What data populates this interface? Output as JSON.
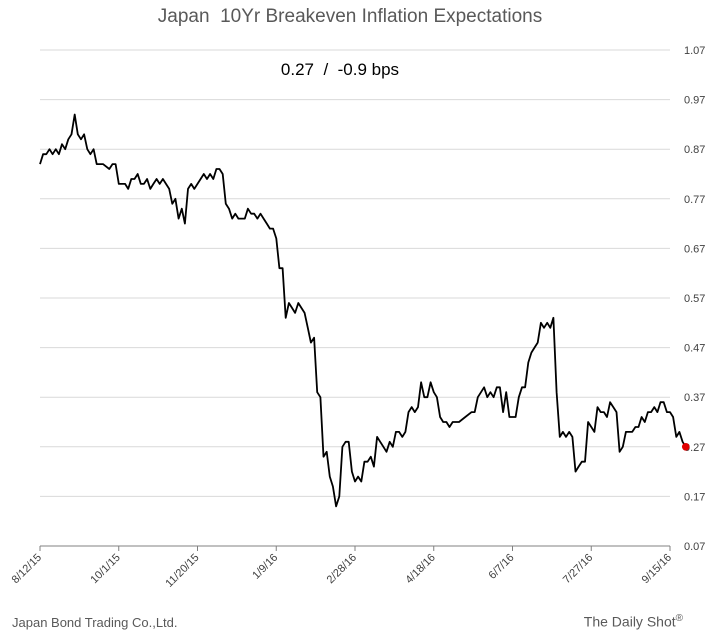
{
  "chart_data": {
    "type": "line",
    "title": "Japan  10Yr Breakeven Inflation Expectations",
    "annotation": "0.27  /  -0.9 bps",
    "xlabel": "",
    "ylabel": "",
    "ylim": [
      0.07,
      1.07
    ],
    "y_ticks": [
      "0.07",
      "0.17",
      "0.27",
      "0.37",
      "0.47",
      "0.57",
      "0.67",
      "0.77",
      "0.87",
      "0.97",
      "1.07"
    ],
    "x_tick_labels": [
      "8/12/15",
      "10/1/15",
      "11/20/15",
      "1/9/16",
      "2/28/16",
      "4/18/16",
      "6/7/16",
      "7/27/16",
      "9/15/16"
    ],
    "xlim_days": [
      0,
      400
    ],
    "x_tick_days": [
      0,
      50,
      100,
      150,
      200,
      250,
      300,
      350,
      400
    ],
    "grid": true,
    "line_color": "#000000",
    "last_point_color": "#e00000",
    "series": [
      {
        "name": "",
        "points": [
          [
            0,
            0.84
          ],
          [
            2,
            0.86
          ],
          [
            4,
            0.86
          ],
          [
            6,
            0.87
          ],
          [
            8,
            0.86
          ],
          [
            10,
            0.87
          ],
          [
            12,
            0.86
          ],
          [
            14,
            0.88
          ],
          [
            16,
            0.87
          ],
          [
            18,
            0.89
          ],
          [
            20,
            0.9
          ],
          [
            22,
            0.94
          ],
          [
            24,
            0.9
          ],
          [
            26,
            0.89
          ],
          [
            28,
            0.9
          ],
          [
            30,
            0.87
          ],
          [
            32,
            0.86
          ],
          [
            34,
            0.87
          ],
          [
            36,
            0.84
          ],
          [
            40,
            0.84
          ],
          [
            44,
            0.83
          ],
          [
            46,
            0.84
          ],
          [
            48,
            0.84
          ],
          [
            50,
            0.8
          ],
          [
            54,
            0.8
          ],
          [
            56,
            0.79
          ],
          [
            58,
            0.81
          ],
          [
            60,
            0.81
          ],
          [
            62,
            0.82
          ],
          [
            64,
            0.8
          ],
          [
            66,
            0.8
          ],
          [
            68,
            0.81
          ],
          [
            70,
            0.79
          ],
          [
            72,
            0.8
          ],
          [
            74,
            0.81
          ],
          [
            76,
            0.8
          ],
          [
            78,
            0.81
          ],
          [
            80,
            0.8
          ],
          [
            82,
            0.79
          ],
          [
            84,
            0.76
          ],
          [
            86,
            0.77
          ],
          [
            88,
            0.73
          ],
          [
            90,
            0.75
          ],
          [
            92,
            0.72
          ],
          [
            94,
            0.79
          ],
          [
            96,
            0.8
          ],
          [
            98,
            0.79
          ],
          [
            100,
            0.8
          ],
          [
            104,
            0.82
          ],
          [
            106,
            0.81
          ],
          [
            108,
            0.82
          ],
          [
            110,
            0.81
          ],
          [
            112,
            0.83
          ],
          [
            114,
            0.83
          ],
          [
            116,
            0.82
          ],
          [
            118,
            0.76
          ],
          [
            120,
            0.75
          ],
          [
            122,
            0.73
          ],
          [
            124,
            0.74
          ],
          [
            126,
            0.73
          ],
          [
            128,
            0.73
          ],
          [
            130,
            0.73
          ],
          [
            132,
            0.75
          ],
          [
            134,
            0.74
          ],
          [
            136,
            0.74
          ],
          [
            138,
            0.73
          ],
          [
            140,
            0.74
          ],
          [
            142,
            0.73
          ],
          [
            144,
            0.72
          ],
          [
            146,
            0.71
          ],
          [
            148,
            0.71
          ],
          [
            150,
            0.69
          ],
          [
            152,
            0.63
          ],
          [
            154,
            0.63
          ],
          [
            156,
            0.53
          ],
          [
            158,
            0.56
          ],
          [
            160,
            0.55
          ],
          [
            162,
            0.54
          ],
          [
            164,
            0.56
          ],
          [
            166,
            0.55
          ],
          [
            168,
            0.54
          ],
          [
            170,
            0.51
          ],
          [
            172,
            0.48
          ],
          [
            174,
            0.49
          ],
          [
            176,
            0.38
          ],
          [
            178,
            0.37
          ],
          [
            180,
            0.25
          ],
          [
            182,
            0.26
          ],
          [
            184,
            0.21
          ],
          [
            186,
            0.19
          ],
          [
            188,
            0.15
          ],
          [
            190,
            0.17
          ],
          [
            192,
            0.27
          ],
          [
            194,
            0.28
          ],
          [
            196,
            0.28
          ],
          [
            198,
            0.22
          ],
          [
            200,
            0.2
          ],
          [
            202,
            0.21
          ],
          [
            204,
            0.2
          ],
          [
            206,
            0.24
          ],
          [
            208,
            0.24
          ],
          [
            210,
            0.25
          ],
          [
            212,
            0.23
          ],
          [
            214,
            0.29
          ],
          [
            216,
            0.28
          ],
          [
            218,
            0.27
          ],
          [
            220,
            0.26
          ],
          [
            222,
            0.28
          ],
          [
            224,
            0.27
          ],
          [
            226,
            0.3
          ],
          [
            228,
            0.3
          ],
          [
            230,
            0.29
          ],
          [
            232,
            0.3
          ],
          [
            234,
            0.34
          ],
          [
            236,
            0.35
          ],
          [
            238,
            0.34
          ],
          [
            240,
            0.35
          ],
          [
            242,
            0.4
          ],
          [
            244,
            0.37
          ],
          [
            246,
            0.37
          ],
          [
            248,
            0.4
          ],
          [
            250,
            0.38
          ],
          [
            252,
            0.37
          ],
          [
            254,
            0.33
          ],
          [
            256,
            0.32
          ],
          [
            258,
            0.32
          ],
          [
            260,
            0.31
          ],
          [
            262,
            0.32
          ],
          [
            266,
            0.32
          ],
          [
            270,
            0.33
          ],
          [
            274,
            0.34
          ],
          [
            276,
            0.34
          ],
          [
            278,
            0.37
          ],
          [
            280,
            0.38
          ],
          [
            282,
            0.39
          ],
          [
            284,
            0.37
          ],
          [
            286,
            0.38
          ],
          [
            288,
            0.37
          ],
          [
            290,
            0.39
          ],
          [
            292,
            0.39
          ],
          [
            294,
            0.34
          ],
          [
            296,
            0.38
          ],
          [
            298,
            0.33
          ],
          [
            302,
            0.33
          ],
          [
            304,
            0.37
          ],
          [
            306,
            0.39
          ],
          [
            308,
            0.39
          ],
          [
            310,
            0.44
          ],
          [
            312,
            0.46
          ],
          [
            314,
            0.47
          ],
          [
            316,
            0.48
          ],
          [
            318,
            0.52
          ],
          [
            320,
            0.51
          ],
          [
            322,
            0.52
          ],
          [
            324,
            0.51
          ],
          [
            326,
            0.53
          ],
          [
            328,
            0.38
          ],
          [
            330,
            0.29
          ],
          [
            332,
            0.3
          ],
          [
            334,
            0.29
          ],
          [
            336,
            0.3
          ],
          [
            338,
            0.29
          ],
          [
            340,
            0.22
          ],
          [
            342,
            0.23
          ],
          [
            344,
            0.24
          ],
          [
            346,
            0.24
          ],
          [
            348,
            0.32
          ],
          [
            350,
            0.31
          ],
          [
            352,
            0.3
          ],
          [
            354,
            0.35
          ],
          [
            356,
            0.34
          ],
          [
            358,
            0.34
          ],
          [
            360,
            0.33
          ],
          [
            362,
            0.36
          ],
          [
            364,
            0.35
          ],
          [
            366,
            0.34
          ],
          [
            368,
            0.26
          ],
          [
            370,
            0.27
          ],
          [
            372,
            0.3
          ],
          [
            374,
            0.3
          ],
          [
            376,
            0.3
          ],
          [
            378,
            0.31
          ],
          [
            380,
            0.31
          ],
          [
            382,
            0.33
          ],
          [
            384,
            0.32
          ],
          [
            386,
            0.34
          ],
          [
            388,
            0.34
          ],
          [
            390,
            0.35
          ],
          [
            392,
            0.34
          ],
          [
            394,
            0.36
          ],
          [
            396,
            0.36
          ],
          [
            398,
            0.34
          ],
          [
            400,
            0.34
          ],
          [
            402,
            0.33
          ],
          [
            404,
            0.29
          ],
          [
            406,
            0.3
          ],
          [
            408,
            0.28
          ],
          [
            410,
            0.27
          ]
        ]
      }
    ]
  },
  "source_text": "Japan Bond Trading Co.,Ltd.",
  "brand_text": "The Daily Shot",
  "brand_mark": "®"
}
